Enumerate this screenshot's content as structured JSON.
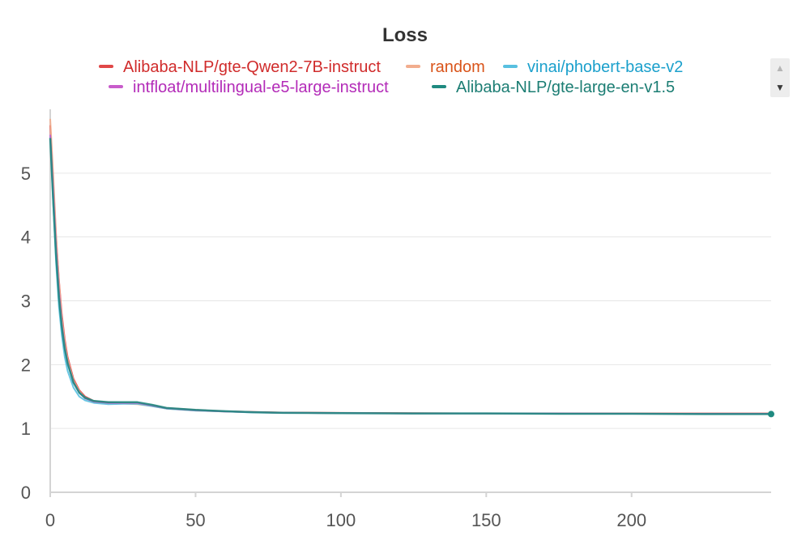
{
  "chart_data": {
    "type": "line",
    "title": "Loss",
    "xlabel": "",
    "ylabel": "",
    "xlim": [
      0,
      248
    ],
    "ylim": [
      0,
      6
    ],
    "x_ticks": [
      0,
      50,
      100,
      150,
      200
    ],
    "y_ticks": [
      0,
      1,
      2,
      3,
      4,
      5
    ],
    "grid": true,
    "legend_position": "top",
    "series": [
      {
        "name": "Alibaba-NLP/gte-Qwen2-7B-instruct",
        "color": "#e04848",
        "text_color": "#d02b2b",
        "x": [
          0,
          1,
          2,
          3,
          4,
          5,
          6,
          8,
          10,
          12,
          15,
          20,
          25,
          30,
          35,
          40,
          50,
          60,
          70,
          80,
          100,
          125,
          150,
          175,
          200,
          225,
          248
        ],
        "y": [
          5.75,
          4.9,
          4.0,
          3.32,
          2.78,
          2.4,
          2.12,
          1.78,
          1.6,
          1.5,
          1.43,
          1.41,
          1.4,
          1.4,
          1.36,
          1.32,
          1.29,
          1.27,
          1.26,
          1.25,
          1.245,
          1.24,
          1.235,
          1.235,
          1.235,
          1.235,
          1.235
        ]
      },
      {
        "name": "random",
        "color": "#f2ad8e",
        "text_color": "#d9541a",
        "x": [
          0,
          1,
          2,
          3,
          4,
          5,
          6,
          8,
          10,
          12,
          15,
          20,
          25,
          30,
          35,
          40,
          50,
          60,
          70,
          80,
          100,
          125,
          150,
          175,
          200,
          225,
          248
        ],
        "y": [
          5.85,
          5.0,
          4.05,
          3.3,
          2.72,
          2.35,
          2.08,
          1.75,
          1.58,
          1.48,
          1.42,
          1.39,
          1.39,
          1.38,
          1.35,
          1.31,
          1.28,
          1.265,
          1.255,
          1.245,
          1.24,
          1.235,
          1.235,
          1.23,
          1.23,
          1.23,
          1.23
        ]
      },
      {
        "name": "vinai/phobert-base-v2",
        "color": "#58c0e0",
        "text_color": "#1ba0cc",
        "x": [
          0,
          1,
          2,
          3,
          4,
          5,
          6,
          8,
          10,
          12,
          15,
          20,
          25,
          30,
          35,
          40,
          50,
          60,
          70,
          80,
          100,
          125,
          150,
          175,
          200,
          225,
          248
        ],
        "y": [
          5.6,
          4.55,
          3.6,
          2.9,
          2.45,
          2.12,
          1.9,
          1.64,
          1.5,
          1.44,
          1.4,
          1.38,
          1.385,
          1.385,
          1.35,
          1.31,
          1.28,
          1.265,
          1.25,
          1.245,
          1.24,
          1.235,
          1.235,
          1.23,
          1.23,
          1.23,
          1.23
        ]
      },
      {
        "name": "intfloat/multilingual-e5-large-instruct",
        "color": "#c85ccb",
        "text_color": "#b32bb8",
        "x": [
          0,
          1,
          2,
          3,
          4,
          5,
          6,
          8,
          10,
          12,
          15,
          20,
          25,
          30,
          35,
          40,
          50,
          60,
          70,
          80,
          100,
          125,
          150,
          175,
          200,
          225,
          248
        ],
        "y": [
          5.6,
          4.75,
          3.85,
          3.15,
          2.63,
          2.28,
          2.03,
          1.72,
          1.56,
          1.47,
          1.42,
          1.4,
          1.4,
          1.4,
          1.36,
          1.315,
          1.285,
          1.265,
          1.255,
          1.245,
          1.24,
          1.235,
          1.235,
          1.235,
          1.23,
          1.23,
          1.23
        ]
      },
      {
        "name": "Alibaba-NLP/gte-large-en-v1.5",
        "color": "#1f8a80",
        "text_color": "#1b7d73",
        "x": [
          0,
          1,
          2,
          3,
          4,
          5,
          6,
          8,
          10,
          12,
          15,
          20,
          25,
          30,
          35,
          40,
          50,
          60,
          70,
          80,
          100,
          125,
          150,
          175,
          200,
          225,
          248
        ],
        "y": [
          5.55,
          4.6,
          3.72,
          3.05,
          2.58,
          2.25,
          2.02,
          1.72,
          1.56,
          1.48,
          1.43,
          1.41,
          1.41,
          1.41,
          1.37,
          1.32,
          1.29,
          1.27,
          1.255,
          1.245,
          1.24,
          1.235,
          1.235,
          1.23,
          1.23,
          1.225,
          1.225
        ]
      }
    ]
  },
  "legend_scroll": {
    "up_icon": "triangle-up-icon",
    "down_icon": "triangle-down-icon",
    "up_glyph": "▲",
    "down_glyph": "▼"
  },
  "colors": {
    "grid": "#e6e6e6",
    "axis": "#d4d4d4",
    "tick_text": "#555555",
    "title": "#333333"
  }
}
